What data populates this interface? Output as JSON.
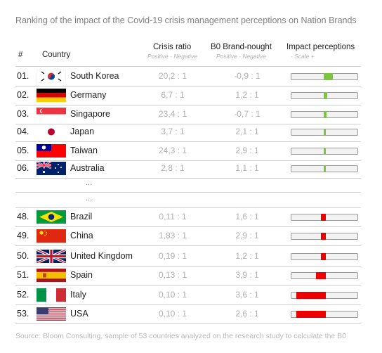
{
  "title": "Ranking of the impact of the Covid-19 crisis management perceptions on Nation Brands",
  "headers": {
    "rank": "#",
    "country": "Country",
    "crisis": "Crisis ratio",
    "crisis_sub": "Positive  -  Negative",
    "b0": "B0  Brand-nought",
    "b0_sub": "Positive  -  Negative",
    "impact": "Impact perceptions",
    "impact_sub": "-              Scale              +"
  },
  "ellipsis": "...",
  "source": "Source: Bloom Consulting, sample of 53 countries analyzed on the research study to calculate the B0",
  "colors": {
    "positive": "#7cc63e",
    "negative": "#ee0000",
    "bar_bg": "#f2f2f2"
  },
  "chart_data": {
    "type": "table",
    "columns": [
      "#",
      "Country",
      "Crisis ratio",
      "B0 Brand-nought",
      "Impact perceptions"
    ],
    "rows": [
      {
        "rank": "01.",
        "country": "South Korea",
        "flag": "south-korea",
        "crisis": "20,2 : 1",
        "b0": "-0,9 : 1",
        "impact": 0.14
      },
      {
        "rank": "02.",
        "country": "Germany",
        "flag": "germany",
        "crisis": "6,7 : 1",
        "b0": "1,2 : 1",
        "impact": 0.05
      },
      {
        "rank": "03.",
        "country": "Singapore",
        "flag": "singapore",
        "crisis": "23,4 : 1",
        "b0": "-0,7 : 1",
        "impact": 0.04
      },
      {
        "rank": "04.",
        "country": "Japan",
        "flag": "japan",
        "crisis": "3,7 : 1",
        "b0": "2,1 : 1",
        "impact": 0.03
      },
      {
        "rank": "05.",
        "country": "Taiwan",
        "flag": "taiwan",
        "crisis": "24,3 : 1",
        "b0": "2,9 : 1",
        "impact": 0.02
      },
      {
        "rank": "06.",
        "country": "Australia",
        "flag": "australia",
        "crisis": "2,8 : 1",
        "b0": "1,1 : 1",
        "impact": 0.02
      },
      {
        "rank": "48.",
        "country": "Brazil",
        "flag": "brazil",
        "crisis": "0,11 : 1",
        "b0": "1,6 : 1",
        "impact": -0.07
      },
      {
        "rank": "49.",
        "country": "China",
        "flag": "china",
        "crisis": "1,83 : 1",
        "b0": "2,9 : 1",
        "impact": -0.07
      },
      {
        "rank": "50.",
        "country": "United Kingdom",
        "flag": "united-kingdom",
        "crisis": "0,19 : 1",
        "b0": "1,2 : 1",
        "impact": -0.07
      },
      {
        "rank": "51.",
        "country": "Spain",
        "flag": "spain",
        "crisis": "0,13 : 1",
        "b0": "3,9 : 1",
        "impact": -0.15
      },
      {
        "rank": "52.",
        "country": "Italy",
        "flag": "italy",
        "crisis": "0,10 : 1",
        "b0": "3,6 : 1",
        "impact": -0.45
      },
      {
        "rank": "53.",
        "country": "USA",
        "flag": "usa",
        "crisis": "0,10 : 1",
        "b0": "2,6 : 1",
        "impact": -0.45
      }
    ]
  }
}
